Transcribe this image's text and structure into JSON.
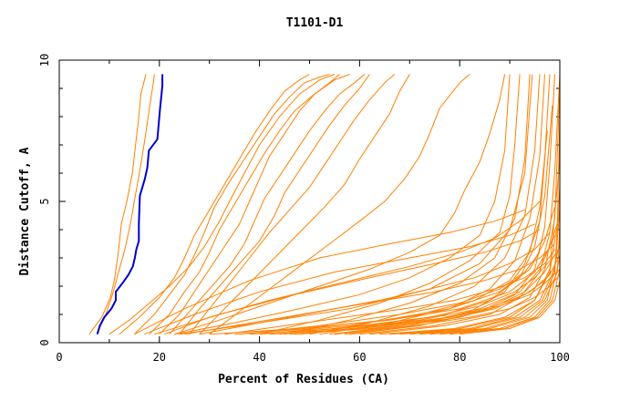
{
  "chart_data": {
    "type": "line",
    "title": "T1101-D1",
    "xlabel": "Percent of Residues (CA)",
    "ylabel": "Distance Cutoff, A",
    "xlim": [
      0,
      100
    ],
    "ylim": [
      0,
      10
    ],
    "x_ticks": [
      "0",
      "20",
      "40",
      "60",
      "80",
      "100"
    ],
    "y_ticks": [
      "0",
      "5",
      "10"
    ],
    "grid": false,
    "colors": {
      "highlight": "#0000cc",
      "models": "#ff8000",
      "axes": "#000000"
    },
    "highlight_series": {
      "x": [
        7.6,
        8.1,
        9.0,
        10.4,
        11.3,
        11.3,
        12.6,
        13.8,
        14.7,
        15.1,
        15.4,
        15.9,
        15.9,
        16.1,
        17.1,
        17.6,
        17.9,
        19.6,
        20.1,
        20.6,
        20.6
      ],
      "y": [
        0.3,
        0.6,
        0.9,
        1.2,
        1.5,
        1.8,
        2.1,
        2.4,
        2.7,
        3.0,
        3.3,
        3.6,
        4.2,
        5.2,
        5.8,
        6.2,
        6.8,
        7.2,
        8.2,
        9.1,
        9.5
      ]
    },
    "model_series": [
      {
        "x": [
          6.0,
          8.5,
          10.2,
          11.0,
          11.8,
          12.4,
          13.5,
          14.6,
          15.3,
          15.9,
          16.3,
          17.3
        ],
        "y": [
          0.3,
          0.9,
          1.6,
          2.2,
          3.2,
          4.2,
          5.0,
          6.0,
          7.1,
          8.0,
          8.8,
          9.5
        ]
      },
      {
        "x": [
          7.5,
          9.3,
          10.8,
          12.0,
          13.1,
          14.2,
          15.2,
          16.2,
          17.2,
          18.0,
          18.8,
          19.0
        ],
        "y": [
          0.3,
          1.0,
          1.8,
          2.6,
          3.3,
          4.2,
          5.2,
          6.2,
          7.3,
          8.3,
          9.2,
          9.5
        ]
      },
      {
        "x": [
          10,
          14,
          18,
          22,
          26,
          29,
          32,
          34,
          37,
          40,
          44,
          48,
          52,
          55
        ],
        "y": [
          0.3,
          0.8,
          1.4,
          2.0,
          2.7,
          3.4,
          4.3,
          5.0,
          6.0,
          7.0,
          8.0,
          8.8,
          9.3,
          9.5
        ]
      },
      {
        "x": [
          12,
          16,
          20,
          23,
          25,
          27,
          30,
          33,
          36,
          39,
          42,
          45,
          48,
          50
        ],
        "y": [
          0.3,
          0.9,
          1.6,
          2.3,
          3.0,
          3.8,
          4.7,
          5.6,
          6.5,
          7.4,
          8.2,
          8.9,
          9.3,
          9.5
        ]
      },
      {
        "x": [
          15,
          19,
          22,
          25,
          27,
          29,
          31,
          34,
          37,
          40,
          43,
          46,
          49,
          52,
          54
        ],
        "y": [
          0.3,
          1.0,
          1.7,
          2.4,
          3.1,
          3.9,
          4.8,
          5.7,
          6.5,
          7.3,
          8.1,
          8.7,
          9.2,
          9.4,
          9.5
        ]
      },
      {
        "x": [
          18,
          22,
          25,
          28,
          30,
          32,
          35,
          38,
          41,
          44,
          47,
          51,
          55,
          58
        ],
        "y": [
          0.3,
          1.0,
          1.8,
          2.5,
          3.2,
          4.0,
          4.9,
          5.8,
          6.7,
          7.5,
          8.2,
          8.8,
          9.3,
          9.5
        ]
      },
      {
        "x": [
          20,
          24,
          27,
          30,
          33,
          36,
          38,
          40,
          42,
          45,
          48,
          51,
          54,
          56
        ],
        "y": [
          0.3,
          1.0,
          1.8,
          2.6,
          3.4,
          4.2,
          5.0,
          5.8,
          6.6,
          7.4,
          8.2,
          8.8,
          9.2,
          9.5
        ]
      },
      {
        "x": [
          22,
          26,
          30,
          34,
          37,
          39,
          41,
          44,
          47,
          50,
          53,
          56,
          59,
          61
        ],
        "y": [
          0.3,
          1.1,
          1.9,
          2.7,
          3.5,
          4.3,
          5.1,
          5.9,
          6.7,
          7.5,
          8.2,
          8.8,
          9.2,
          9.5
        ]
      },
      {
        "x": [
          24,
          28,
          32,
          36,
          40,
          43,
          45,
          48,
          51,
          54,
          57,
          60,
          62
        ],
        "y": [
          0.3,
          1.2,
          2.0,
          2.8,
          3.6,
          4.5,
          5.3,
          6.1,
          6.9,
          7.7,
          8.4,
          9.0,
          9.5
        ]
      },
      {
        "x": [
          26,
          30,
          34,
          38,
          42,
          46,
          50,
          53,
          56,
          59,
          62,
          65,
          67
        ],
        "y": [
          0.3,
          1.2,
          2.1,
          3.0,
          3.9,
          4.7,
          5.5,
          6.3,
          7.1,
          7.9,
          8.6,
          9.2,
          9.5
        ]
      },
      {
        "x": [
          28,
          33,
          38,
          43,
          48,
          53,
          57,
          60,
          63,
          66,
          68,
          70
        ],
        "y": [
          0.3,
          1.2,
          2.1,
          3.0,
          3.9,
          4.8,
          5.6,
          6.5,
          7.3,
          8.1,
          8.9,
          9.5
        ]
      },
      {
        "x": [
          30,
          36,
          42,
          48,
          54,
          60,
          65,
          69,
          72,
          74,
          76,
          80,
          82
        ],
        "y": [
          0.3,
          1.1,
          1.9,
          2.7,
          3.5,
          4.3,
          5.0,
          5.8,
          6.6,
          7.4,
          8.3,
          9.2,
          9.5
        ]
      },
      {
        "x": [
          23,
          32,
          42,
          52,
          62,
          70,
          76,
          79,
          81,
          84,
          86,
          88,
          89
        ],
        "y": [
          0.3,
          0.8,
          1.4,
          2.0,
          2.6,
          3.2,
          3.8,
          4.6,
          5.4,
          6.4,
          7.4,
          8.6,
          9.5
        ]
      },
      {
        "x": [
          23,
          35,
          48,
          60,
          70,
          78,
          84,
          87,
          89,
          90
        ],
        "y": [
          0.3,
          0.7,
          1.2,
          1.7,
          2.3,
          3.0,
          3.8,
          5.0,
          6.8,
          9.5
        ]
      },
      {
        "x": [
          40,
          52,
          64,
          74,
          82,
          88,
          90,
          91,
          92
        ],
        "y": [
          0.3,
          0.8,
          1.4,
          2.1,
          2.9,
          3.9,
          5.2,
          7.0,
          9.5
        ]
      },
      {
        "x": [
          45,
          58,
          70,
          80,
          87,
          91,
          93,
          94
        ],
        "y": [
          0.3,
          0.8,
          1.4,
          2.1,
          3.0,
          4.4,
          6.5,
          9.5
        ]
      },
      {
        "x": [
          50,
          62,
          74,
          83,
          89,
          93,
          95,
          96
        ],
        "y": [
          0.3,
          0.7,
          1.3,
          2.0,
          3.0,
          4.5,
          6.8,
          9.5
        ]
      },
      {
        "x": [
          52,
          66,
          78,
          86,
          91,
          94,
          96,
          97
        ],
        "y": [
          0.3,
          0.7,
          1.2,
          1.9,
          2.9,
          4.4,
          6.6,
          9.5
        ]
      },
      {
        "x": [
          55,
          70,
          82,
          89,
          93,
          96,
          97,
          98
        ],
        "y": [
          0.3,
          0.6,
          1.1,
          1.8,
          2.8,
          4.3,
          6.5,
          9.5
        ]
      },
      {
        "x": [
          58,
          72,
          84,
          91,
          95,
          97,
          98,
          99
        ],
        "y": [
          0.3,
          0.6,
          1.1,
          1.7,
          2.6,
          4.1,
          6.3,
          9.5
        ]
      },
      {
        "x": [
          60,
          75,
          86,
          92,
          96,
          98,
          99,
          100
        ],
        "y": [
          0.3,
          0.6,
          1.0,
          1.6,
          2.5,
          3.9,
          6.1,
          9.5
        ]
      },
      {
        "x": [
          62,
          77,
          88,
          94,
          97,
          99,
          100
        ],
        "y": [
          0.3,
          0.6,
          1.0,
          1.6,
          2.6,
          4.4,
          9.0
        ]
      },
      {
        "x": [
          64,
          79,
          89,
          95,
          98,
          99.5,
          100
        ],
        "y": [
          0.3,
          0.5,
          0.9,
          1.5,
          2.5,
          4.2,
          8.0
        ]
      },
      {
        "x": [
          66,
          80,
          90,
          95,
          98,
          100
        ],
        "y": [
          0.3,
          0.5,
          0.9,
          1.5,
          2.6,
          6.5
        ]
      },
      {
        "x": [
          68,
          82,
          91,
          96,
          99,
          100
        ],
        "y": [
          0.3,
          0.5,
          0.9,
          1.5,
          2.6,
          5.5
        ]
      },
      {
        "x": [
          70,
          83,
          92,
          96.5,
          99,
          100
        ],
        "y": [
          0.3,
          0.5,
          0.9,
          1.5,
          2.5,
          4.8
        ]
      },
      {
        "x": [
          72,
          85,
          93,
          97,
          99.5,
          100
        ],
        "y": [
          0.3,
          0.5,
          0.9,
          1.5,
          2.5,
          4.2
        ]
      },
      {
        "x": [
          74,
          86,
          94,
          97.5,
          100
        ],
        "y": [
          0.3,
          0.5,
          0.9,
          1.5,
          3.6
        ]
      },
      {
        "x": [
          76,
          88,
          95,
          98,
          100
        ],
        "y": [
          0.3,
          0.5,
          0.9,
          1.5,
          3.0
        ]
      },
      {
        "x": [
          78,
          89,
          95.5,
          98.5,
          100
        ],
        "y": [
          0.3,
          0.5,
          0.9,
          1.5,
          2.6
        ]
      },
      {
        "x": [
          80,
          90,
          96,
          99,
          100
        ],
        "y": [
          0.3,
          0.5,
          0.9,
          1.5,
          2.2
        ]
      },
      {
        "x": [
          35,
          50,
          65,
          78,
          88,
          94,
          97,
          99
        ],
        "y": [
          0.3,
          0.5,
          0.8,
          1.2,
          1.8,
          2.6,
          3.6,
          4.8
        ]
      },
      {
        "x": [
          30,
          48,
          66,
          80,
          90,
          95,
          98,
          100
        ],
        "y": [
          0.3,
          0.5,
          0.8,
          1.2,
          1.8,
          2.5,
          3.4,
          4.5
        ]
      },
      {
        "x": [
          38,
          56,
          72,
          84,
          92,
          96,
          99
        ],
        "y": [
          0.3,
          0.5,
          0.8,
          1.2,
          1.8,
          2.6,
          3.8
        ]
      },
      {
        "x": [
          42,
          60,
          75,
          86,
          93,
          97,
          100
        ],
        "y": [
          0.3,
          0.5,
          0.8,
          1.2,
          1.8,
          2.5,
          3.4
        ]
      },
      {
        "x": [
          46,
          62,
          77,
          87,
          94,
          98,
          100
        ],
        "y": [
          0.3,
          0.5,
          0.8,
          1.2,
          1.8,
          2.4,
          3.1
        ]
      },
      {
        "x": [
          25,
          35,
          45,
          55,
          65,
          75,
          85,
          92,
          96,
          99
        ],
        "y": [
          0.3,
          0.6,
          0.9,
          1.2,
          1.5,
          1.8,
          2.2,
          2.6,
          3.0,
          3.5
        ]
      },
      {
        "x": [
          28,
          40,
          52,
          64,
          74,
          83,
          90,
          95,
          98
        ],
        "y": [
          0.3,
          0.7,
          1.1,
          1.5,
          1.9,
          2.3,
          2.8,
          3.3,
          3.9
        ]
      },
      {
        "x": [
          21,
          30,
          42,
          56,
          70,
          80,
          87,
          92,
          96
        ],
        "y": [
          0.3,
          0.9,
          1.5,
          2.1,
          2.7,
          3.2,
          3.7,
          4.3,
          5.0
        ]
      },
      {
        "x": [
          33,
          45,
          57,
          69,
          79,
          87,
          93,
          97,
          99
        ],
        "y": [
          0.3,
          0.6,
          0.9,
          1.2,
          1.5,
          1.9,
          2.3,
          2.8,
          3.3
        ]
      },
      {
        "x": [
          15,
          25,
          38,
          52,
          66,
          78,
          87,
          93
        ],
        "y": [
          0.3,
          1.2,
          2.2,
          3.0,
          3.5,
          3.9,
          4.3,
          4.7
        ]
      },
      {
        "x": [
          17,
          27,
          40,
          55,
          70,
          82,
          90,
          95
        ],
        "y": [
          0.3,
          1.0,
          1.8,
          2.5,
          3.0,
          3.4,
          3.8,
          4.2
        ]
      },
      {
        "x": [
          19,
          32,
          47,
          62,
          75,
          85,
          92,
          96
        ],
        "y": [
          0.3,
          1.0,
          1.7,
          2.3,
          2.8,
          3.2,
          3.6,
          4.0
        ]
      },
      {
        "x": [
          36,
          52,
          68,
          80,
          88,
          93,
          96
        ],
        "y": [
          0.3,
          0.6,
          1.0,
          1.4,
          1.9,
          2.5,
          3.2
        ]
      },
      {
        "x": [
          44,
          60,
          74,
          84,
          91,
          95,
          98
        ],
        "y": [
          0.3,
          0.6,
          0.9,
          1.3,
          1.8,
          2.3,
          2.9
        ]
      },
      {
        "x": [
          48,
          64,
          78,
          87,
          93,
          97,
          99
        ],
        "y": [
          0.3,
          0.6,
          0.9,
          1.3,
          1.7,
          2.2,
          2.7
        ]
      },
      {
        "x": [
          54,
          68,
          80,
          88,
          94,
          97,
          100
        ],
        "y": [
          0.3,
          0.6,
          0.9,
          1.3,
          1.7,
          2.1,
          2.6
        ]
      },
      {
        "x": [
          57,
          71,
          82,
          90,
          95,
          98,
          100
        ],
        "y": [
          0.3,
          0.6,
          0.9,
          1.2,
          1.6,
          2.0,
          2.4
        ]
      },
      {
        "x": [
          40,
          58,
          72,
          83,
          90,
          94,
          96,
          97.5
        ],
        "y": [
          0.3,
          0.6,
          1.0,
          1.5,
          2.2,
          3.2,
          4.8,
          7.5
        ]
      },
      {
        "x": [
          47,
          64,
          77,
          86,
          92,
          95,
          97,
          98.5
        ],
        "y": [
          0.3,
          0.6,
          1.0,
          1.5,
          2.3,
          3.4,
          5.2,
          8.4
        ]
      },
      {
        "x": [
          24,
          40,
          58,
          74,
          84,
          90,
          93,
          94.5
        ],
        "y": [
          0.3,
          0.7,
          1.2,
          1.9,
          2.8,
          4.0,
          6.0,
          9.5
        ]
      }
    ]
  }
}
